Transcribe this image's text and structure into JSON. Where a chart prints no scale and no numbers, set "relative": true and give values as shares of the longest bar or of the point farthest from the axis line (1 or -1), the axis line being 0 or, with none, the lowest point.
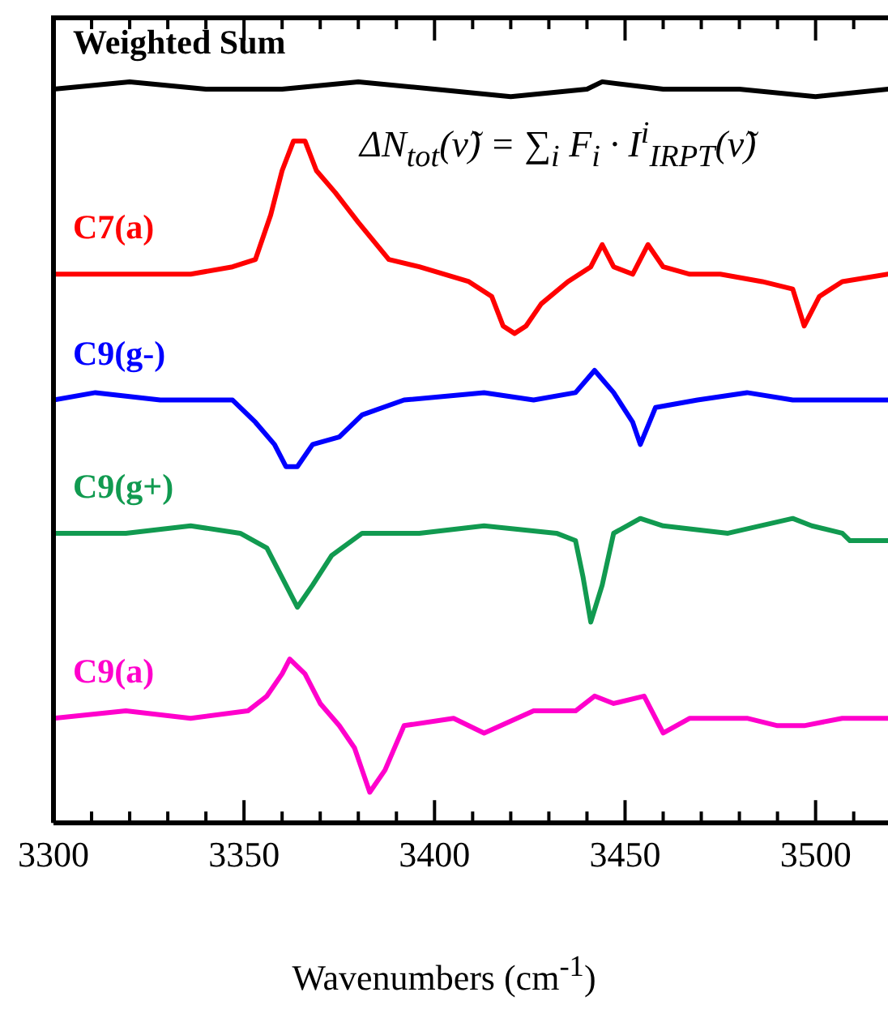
{
  "chart_data": {
    "type": "line",
    "relative": true,
    "xlabel": "Wavenumbers (cm$^{-1}$)",
    "xlim": [
      3300,
      3519
    ],
    "xticks": [
      3300,
      {
        "value": 3310,
        "label": null
      },
      {
        "value": 3320,
        "label": null
      },
      {
        "value": 3330,
        "label": null
      },
      {
        "value": 3340,
        "label": null
      },
      3350,
      {
        "value": 3360,
        "label": null
      },
      {
        "value": 3370,
        "label": null
      },
      {
        "value": 3380,
        "label": null
      },
      {
        "value": 3390,
        "label": null
      },
      3400,
      {
        "value": 3410,
        "label": null
      },
      {
        "value": 3420,
        "label": null
      },
      {
        "value": 3430,
        "label": null
      },
      {
        "value": 3440,
        "label": null
      },
      3450,
      {
        "value": 3460,
        "label": null
      },
      {
        "value": 3470,
        "label": null
      },
      {
        "value": 3480,
        "label": null
      },
      {
        "value": 3490,
        "label": null
      },
      3500,
      {
        "value": 3510,
        "label": null
      }
    ],
    "grid": false,
    "marker": "none",
    "line_style": "solid",
    "annotations": [
      "ΔN$_{tot}$(ν̃) = ∑$_{i}$ F$_{i}$ · I$^{i}$$_{IRPT}$(ν̃)"
    ],
    "series": [
      {
        "name": "Weighted Sum",
        "color": "#000000",
        "x": [
          3300,
          3320,
          3340,
          3360,
          3380,
          3400,
          3420,
          3440,
          3444,
          3460,
          3480,
          3500,
          3519
        ],
        "values": [
          0.99,
          1,
          0.99,
          0.99,
          1,
          0.99,
          0.98,
          0.99,
          1,
          0.99,
          0.99,
          0.98,
          0.99
        ]
      },
      {
        "name": "C7(a)",
        "color": "#ff0000",
        "x": [
          3300,
          3311,
          3324,
          3336,
          3347,
          3353,
          3357,
          3360,
          3363,
          3366,
          3369,
          3374,
          3380,
          3388,
          3396,
          3409,
          3415,
          3418,
          3421,
          3424,
          3428,
          3435,
          3441,
          3444,
          3447,
          3452,
          3456,
          3460,
          3467,
          3475,
          3486,
          3494,
          3497,
          3501,
          3507,
          3519
        ],
        "values": [
          0.74,
          0.74,
          0.74,
          0.74,
          0.75,
          0.76,
          0.82,
          0.88,
          0.92,
          0.92,
          0.88,
          0.85,
          0.81,
          0.76,
          0.75,
          0.73,
          0.71,
          0.67,
          0.66,
          0.67,
          0.7,
          0.73,
          0.75,
          0.78,
          0.75,
          0.74,
          0.78,
          0.75,
          0.74,
          0.74,
          0.73,
          0.72,
          0.67,
          0.71,
          0.73,
          0.74
        ]
      },
      {
        "name": "C9(g-)",
        "color": "#0000ff",
        "x": [
          3300,
          3311,
          3328,
          3347,
          3353,
          3358,
          3361,
          3364,
          3368,
          3375,
          3381,
          3392,
          3413,
          3426,
          3437,
          3442,
          3447,
          3452,
          3454,
          3458,
          3469,
          3482,
          3494,
          3507,
          3519
        ],
        "values": [
          0.57,
          0.58,
          0.57,
          0.57,
          0.54,
          0.51,
          0.48,
          0.48,
          0.51,
          0.52,
          0.55,
          0.57,
          0.58,
          0.57,
          0.58,
          0.61,
          0.58,
          0.54,
          0.51,
          0.56,
          0.57,
          0.58,
          0.57,
          0.57,
          0.57
        ]
      },
      {
        "name": "C9(g+)",
        "color": "#119a50",
        "x": [
          3300,
          3319,
          3336,
          3349,
          3356,
          3360,
          3364,
          3368,
          3373,
          3381,
          3396,
          3413,
          3432,
          3437,
          3439,
          3441,
          3444,
          3447,
          3454,
          3460,
          3477,
          3494,
          3499,
          3507,
          3509,
          3519
        ],
        "values": [
          0.39,
          0.39,
          0.4,
          0.39,
          0.37,
          0.33,
          0.29,
          0.32,
          0.36,
          0.39,
          0.39,
          0.4,
          0.39,
          0.38,
          0.33,
          0.27,
          0.32,
          0.39,
          0.41,
          0.4,
          0.39,
          0.41,
          0.4,
          0.39,
          0.38,
          0.38
        ]
      },
      {
        "name": "C9(a)",
        "color": "#ff00cc",
        "x": [
          3300,
          3319,
          3336,
          3351,
          3356,
          3360,
          3362,
          3366,
          3370,
          3375,
          3379,
          3381,
          3383,
          3387,
          3392,
          3405,
          3413,
          3426,
          3437,
          3442,
          3447,
          3455,
          3460,
          3467,
          3482,
          3490,
          3497,
          3507,
          3519
        ],
        "values": [
          0.14,
          0.15,
          0.14,
          0.15,
          0.17,
          0.2,
          0.22,
          0.2,
          0.16,
          0.13,
          0.1,
          0.07,
          0.04,
          0.07,
          0.13,
          0.14,
          0.12,
          0.15,
          0.15,
          0.17,
          0.16,
          0.17,
          0.12,
          0.14,
          0.14,
          0.13,
          0.13,
          0.14,
          0.14
        ]
      }
    ]
  }
}
